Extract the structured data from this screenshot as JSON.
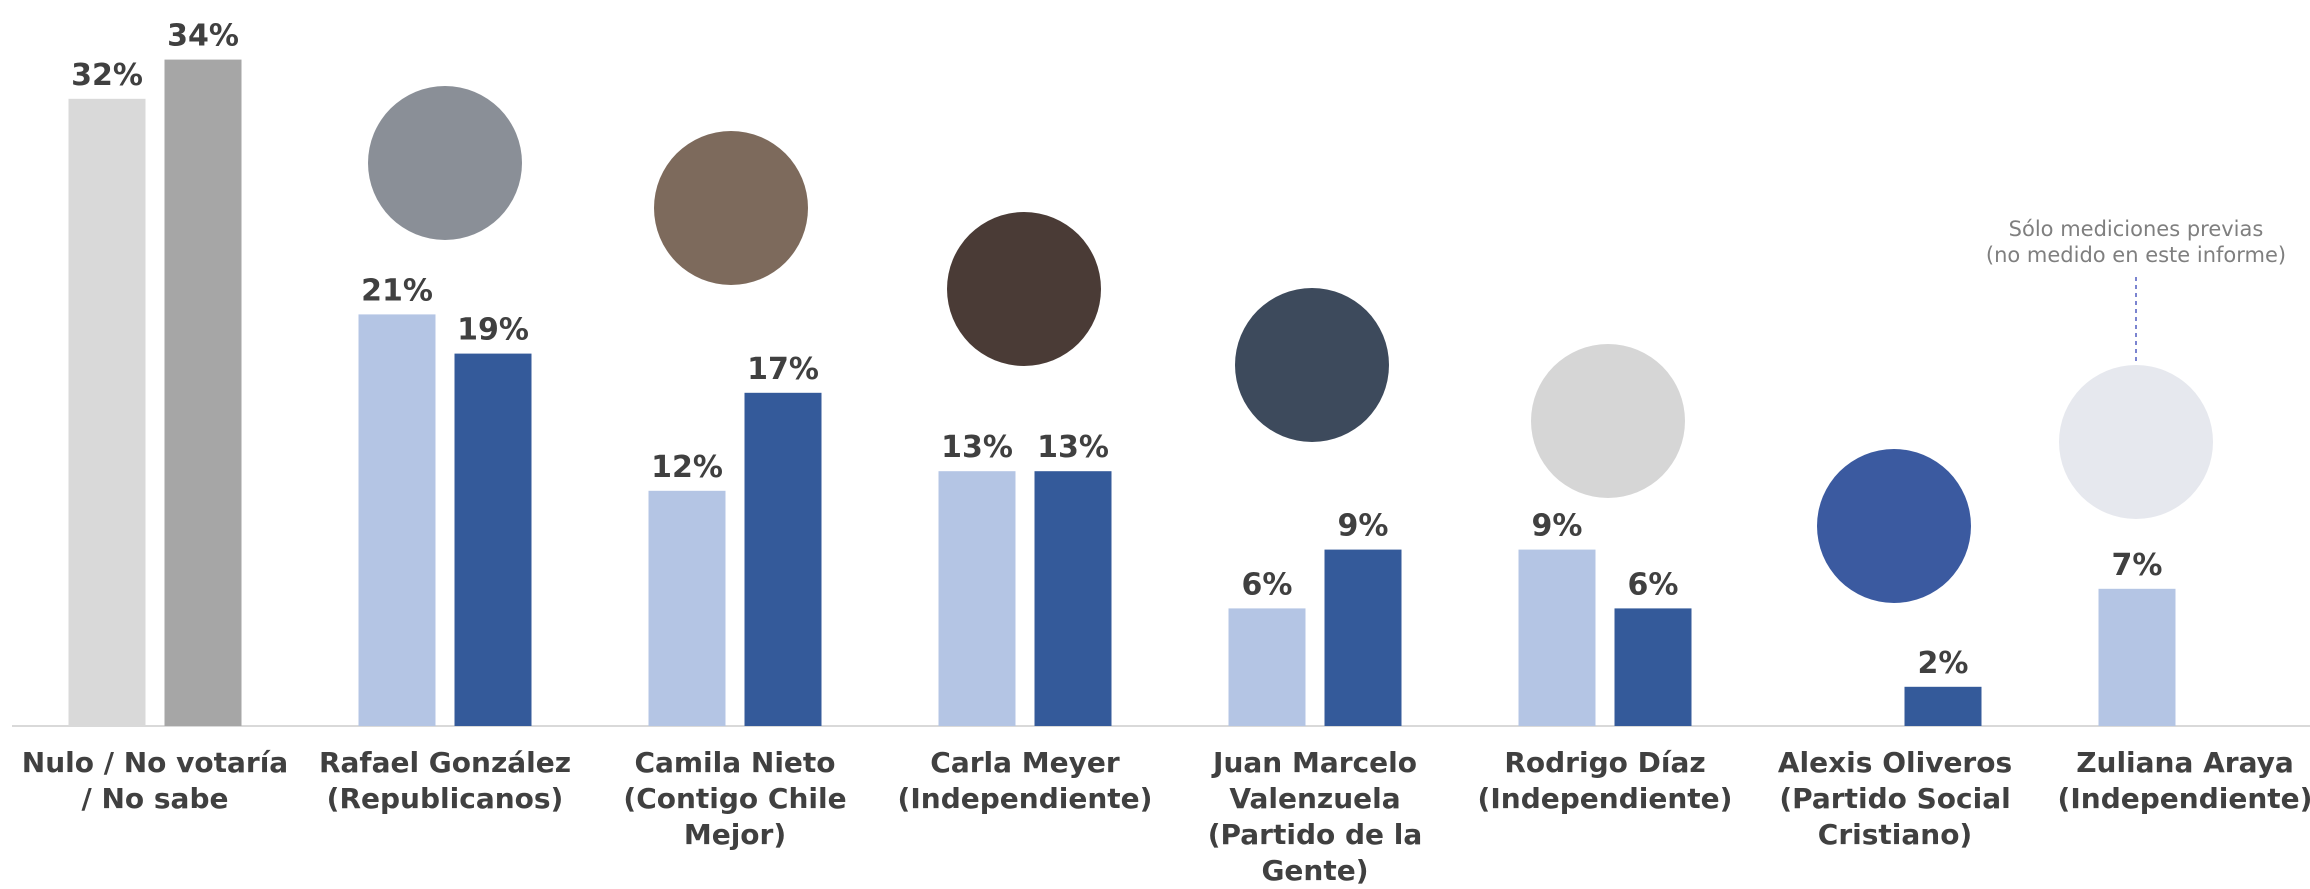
{
  "chart_data": {
    "type": "bar",
    "categories": [
      "Nulo / No votaría / No sabe",
      "Rafael González (Republicanos)",
      "Camila Nieto (Contigo Chile Mejor)",
      "Carla Meyer (Independiente)",
      "Juan Marcelo Valenzuela (Partido de la Gente)",
      "Rodrigo Díaz (Independiente)",
      "Alexis Oliveros (Partido Social Cristiano)",
      "Zuliana Araya (Independiente)"
    ],
    "series": [
      {
        "colors": [
          "#d9d9d9",
          "#b4c5e4",
          "#b4c5e4",
          "#b4c5e4",
          "#b4c5e4",
          "#b4c5e4",
          "#b4c5e4",
          "#b4c5e4"
        ],
        "values": [
          32,
          21,
          12,
          13,
          6,
          9,
          null,
          7
        ],
        "value_labels": [
          "32%",
          "21%",
          "12%",
          "13%",
          "6%",
          "9%",
          null,
          "7%"
        ]
      },
      {
        "colors": [
          "#a6a6a6",
          "#345a9a",
          "#345a9a",
          "#345a9a",
          "#345a9a",
          "#345a9a",
          "#345a9a",
          "#345a9a"
        ],
        "values": [
          34,
          19,
          17,
          13,
          9,
          6,
          2,
          null
        ],
        "value_labels": [
          "34%",
          "19%",
          "17%",
          "13%",
          "9%",
          "6%",
          "2%",
          null
        ]
      }
    ],
    "annotation": [
      "Sólo mediciones previas",
      "(no medido en este informe)"
    ]
  }
}
